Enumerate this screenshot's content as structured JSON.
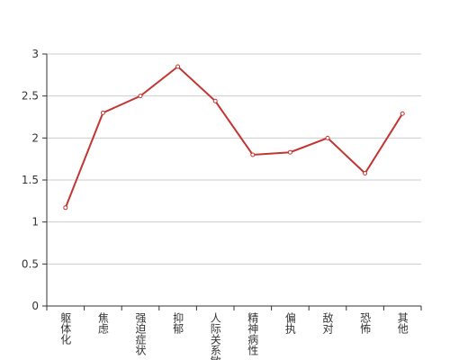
{
  "chart_data": {
    "type": "line",
    "categories": [
      "躯体化",
      "焦虑",
      "强迫症状",
      "抑郁",
      "人际关系敏感",
      "精神病性",
      "偏执",
      "敌对",
      "恐怖",
      "其他"
    ],
    "series": [
      {
        "color": "#c23531",
        "values": [
          1.17,
          2.3,
          2.5,
          2.85,
          2.44,
          1.8,
          1.83,
          2.0,
          1.58,
          2.29
        ]
      }
    ],
    "ylim": [
      0,
      3
    ],
    "yticks": [
      0,
      0.5,
      1,
      1.5,
      2,
      2.5,
      3
    ],
    "grid": true
  }
}
